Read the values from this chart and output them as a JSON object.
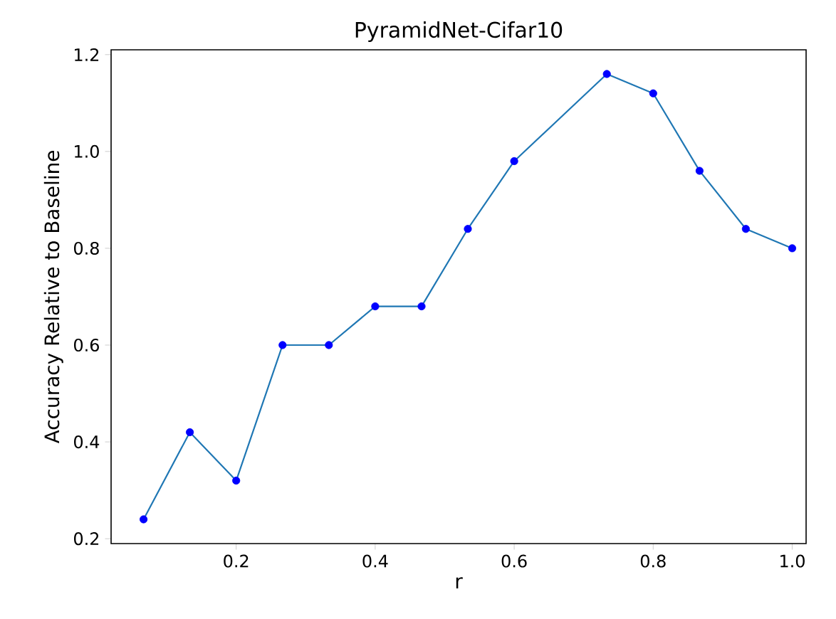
{
  "chart_data": {
    "type": "line",
    "title": "PyramidNet-Cifar10",
    "xlabel": "r",
    "ylabel": "Accuracy Relative to Baseline",
    "xlim": [
      0.02,
      1.02
    ],
    "ylim": [
      0.19,
      1.21
    ],
    "xticks": [
      0.2,
      0.4,
      0.6,
      0.8,
      {
        "value": 1.0,
        "label": "1.0"
      }
    ],
    "yticks": [
      0.2,
      0.4,
      0.6,
      0.8,
      {
        "value": 1.0,
        "label": "1.0"
      },
      1.2
    ],
    "series": [
      {
        "color": "#1f77b4",
        "x": [
          0.0667,
          0.1333,
          0.2,
          0.2667,
          0.3333,
          0.4,
          0.4667,
          0.5333,
          0.6,
          0.7333,
          0.8,
          0.8667,
          0.9333,
          1.0
        ],
        "values": [
          0.24,
          0.42,
          0.32,
          0.6,
          0.6,
          0.68,
          0.68,
          0.84,
          0.98,
          1.16,
          1.12,
          0.96,
          0.84,
          0.8
        ]
      },
      {
        "type": "scatter",
        "color": "#0000ff",
        "x": [
          0.0667,
          0.1333,
          0.2,
          0.2667,
          0.3333,
          0.4,
          0.4667,
          0.5333,
          0.6,
          0.7333,
          0.8,
          0.8667,
          0.9333,
          1.0
        ],
        "values": [
          0.24,
          0.42,
          0.32,
          0.6,
          0.6,
          0.68,
          0.68,
          0.84,
          0.98,
          1.16,
          1.12,
          0.96,
          0.84,
          0.8
        ]
      }
    ]
  }
}
